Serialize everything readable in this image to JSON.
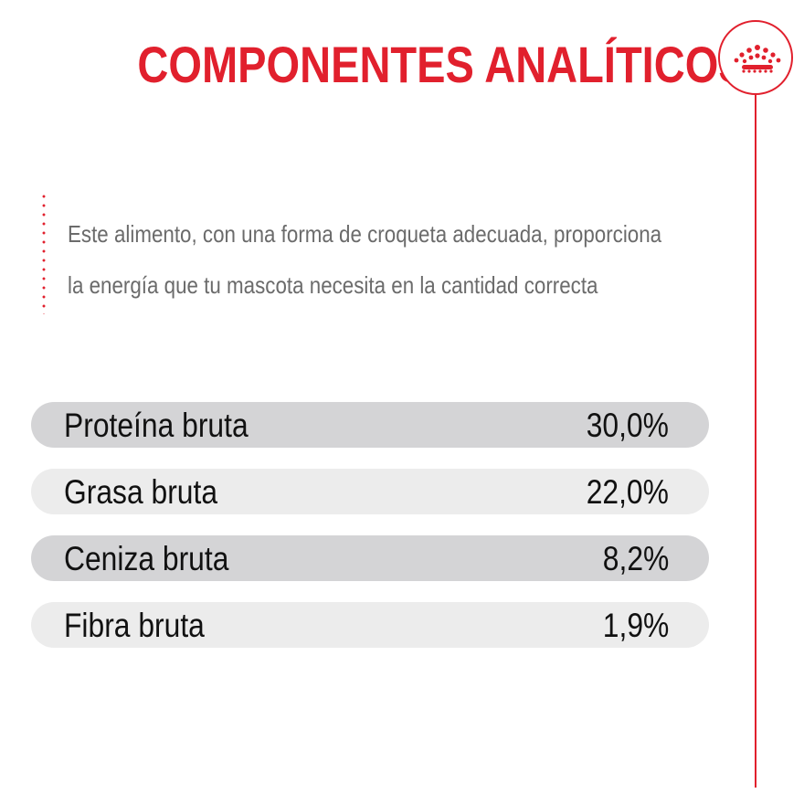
{
  "title": "COMPONENTES ANALÍTICOS",
  "description": {
    "line1": "Este alimento, con una forma de croqueta adecuada, proporciona",
    "line2": "la energía que tu mascota necesita en la cantidad correcta"
  },
  "components": [
    {
      "label": "Proteína bruta",
      "value": "30,0%"
    },
    {
      "label": "Grasa bruta",
      "value": "22,0%"
    },
    {
      "label": "Ceniza bruta",
      "value": "8,2%"
    },
    {
      "label": "Fibra bruta",
      "value": "1,9%"
    }
  ],
  "logo": {
    "icon": "crown-icon"
  },
  "colors": {
    "accent": "#e1202d",
    "row_dark": "#d4d4d6",
    "row_light": "#ececec",
    "text": "#111111",
    "description_text": "#6b6b6b"
  }
}
